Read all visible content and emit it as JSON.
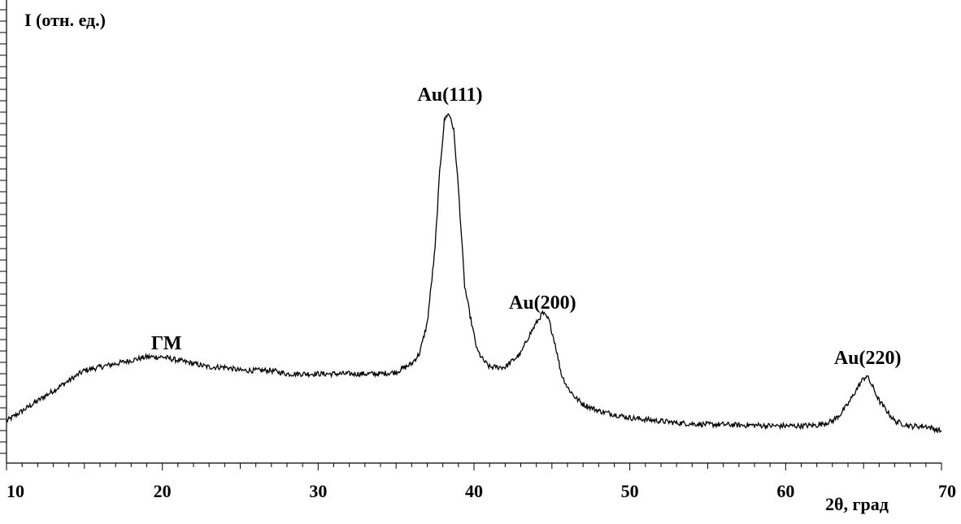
{
  "chart_data": {
    "type": "line",
    "ylabel": "I (отн. ед.)",
    "xlabel": "2θ, град",
    "xlim": [
      10,
      70
    ],
    "ylim": [
      0,
      100
    ],
    "x_ticks": [
      10,
      20,
      30,
      40,
      50,
      60,
      70
    ],
    "grid": false,
    "series": [
      {
        "x": [
          10,
          11,
          12,
          13,
          14,
          15,
          16,
          17,
          18,
          19,
          20,
          21,
          22,
          23,
          24,
          25,
          26,
          27,
          28,
          29,
          30,
          31,
          32,
          33,
          34,
          35,
          36,
          36.5,
          37,
          37.5,
          37.8,
          38.1,
          38.3,
          38.5,
          38.7,
          39.0,
          39.4,
          39.8,
          40.2,
          40.6,
          41,
          41.5,
          42,
          42.5,
          43,
          43.5,
          44,
          44.4,
          44.8,
          45.2,
          45.6,
          46,
          46.5,
          47,
          48,
          49,
          50,
          51,
          52,
          53,
          54,
          55,
          56,
          57,
          58,
          59,
          60,
          61,
          62,
          63,
          63.5,
          64,
          64.5,
          64.9,
          65.2,
          65.6,
          66,
          66.5,
          67,
          68,
          69,
          70
        ],
        "y": [
          4,
          7,
          10,
          13,
          16,
          19,
          20,
          21,
          22,
          23,
          23,
          22,
          21,
          20,
          20,
          19,
          19,
          19,
          18,
          18,
          18,
          18,
          18,
          18,
          18,
          18.5,
          21,
          24,
          33,
          55,
          78,
          93,
          95,
          94,
          90,
          73,
          44,
          34,
          25,
          22,
          20,
          20,
          20,
          22,
          24,
          29,
          33,
          36,
          34,
          27,
          18,
          14,
          11,
          9,
          7,
          6,
          5,
          4.5,
          4,
          3.5,
          3.2,
          3,
          3,
          2.8,
          2.8,
          2.6,
          2.6,
          2.6,
          2.8,
          4,
          6,
          9,
          13,
          16,
          17.5,
          14,
          10,
          7,
          4,
          2.5,
          2.5,
          1
        ]
      }
    ],
    "annotations": [
      {
        "text": "ГМ",
        "x": 20
      },
      {
        "text": "Au(111)",
        "x": 38.2
      },
      {
        "text": "Au(200)",
        "x": 44.4
      },
      {
        "text": "Au(220)",
        "x": 65
      }
    ]
  }
}
